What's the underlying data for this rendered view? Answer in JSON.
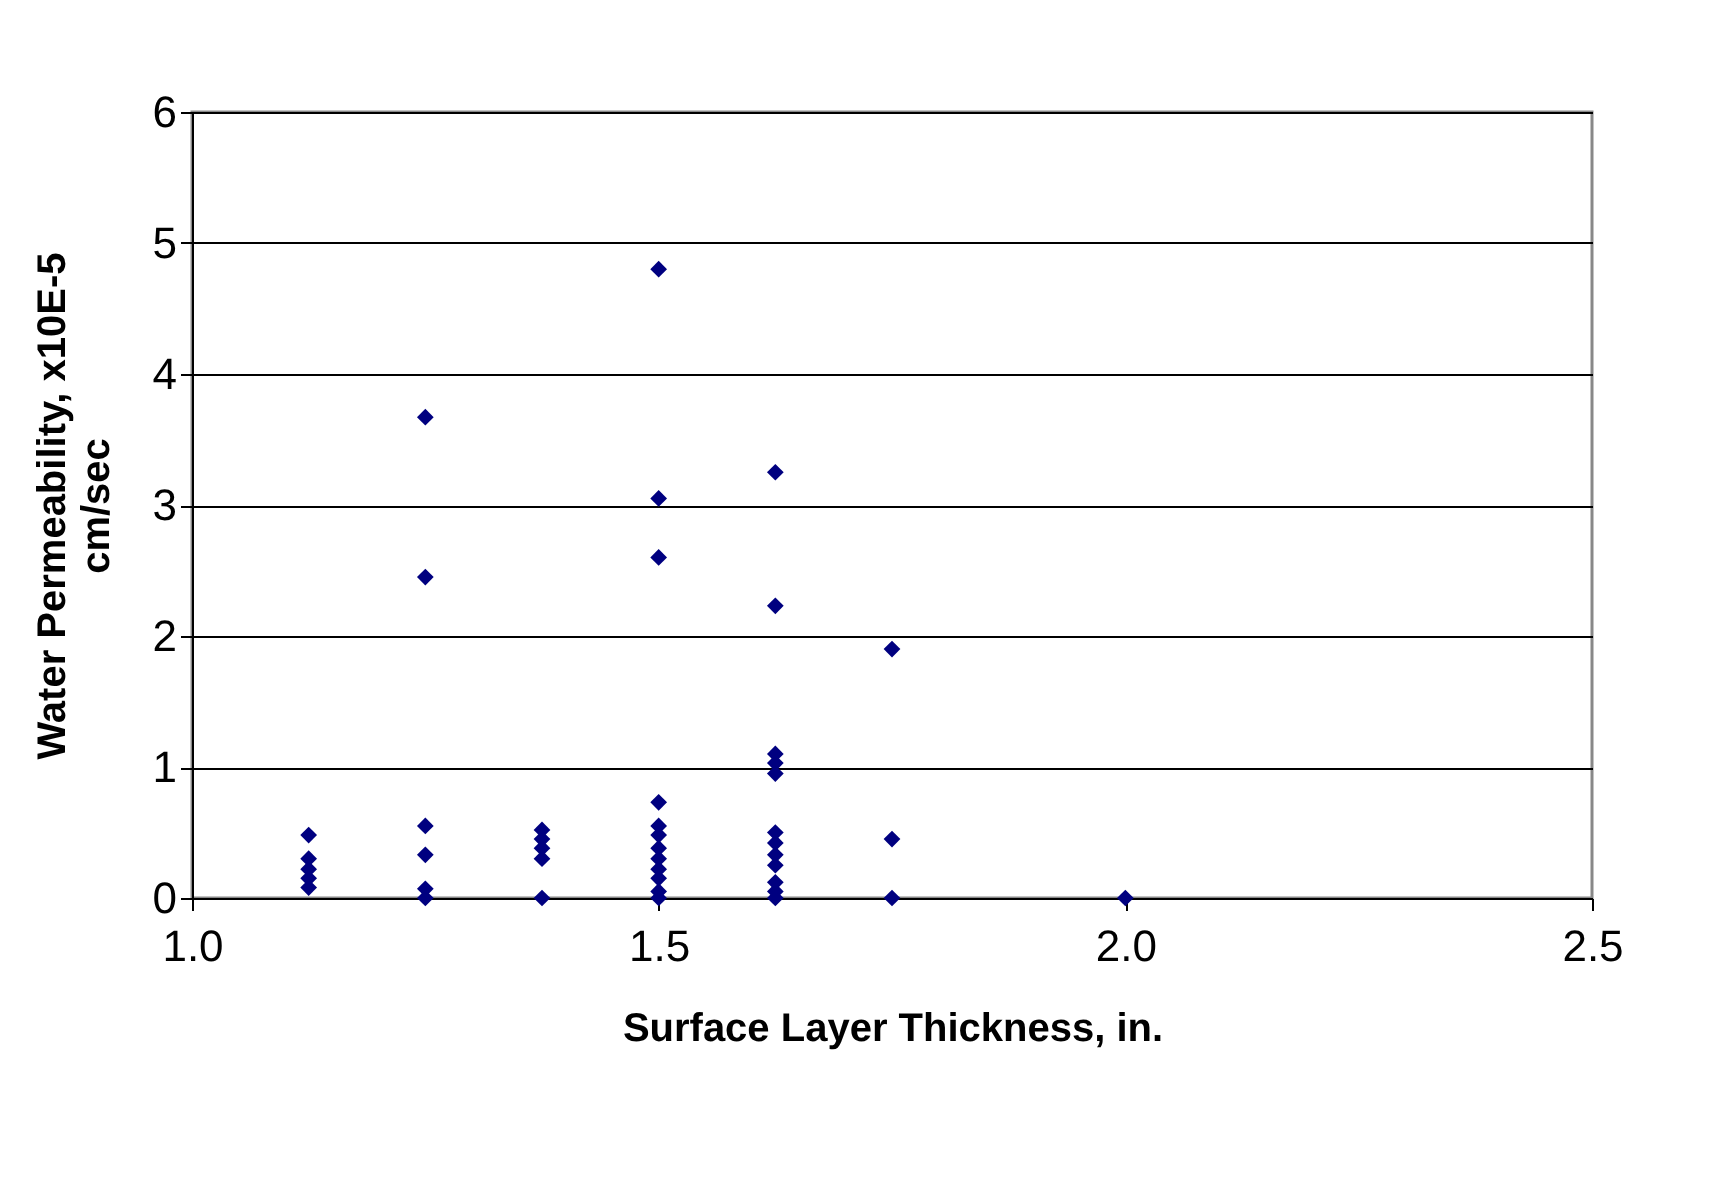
{
  "chart_data": {
    "type": "scatter",
    "xlabel": "Surface Layer Thickness, in.",
    "ylabel": "Water Permeability, x10E-5 cm/sec",
    "x": [
      1.125,
      1.125,
      1.125,
      1.125,
      1.125,
      1.25,
      1.25,
      1.25,
      1.25,
      1.25,
      1.25,
      1.375,
      1.375,
      1.375,
      1.375,
      1.375,
      1.5,
      1.5,
      1.5,
      1.5,
      1.5,
      1.5,
      1.5,
      1.5,
      1.5,
      1.5,
      1.5,
      1.5,
      1.625,
      1.625,
      1.625,
      1.625,
      1.625,
      1.625,
      1.625,
      1.625,
      1.625,
      1.625,
      1.625,
      1.625,
      1.75,
      1.75,
      1.75,
      2.0
    ],
    "series": [
      {
        "color": "#000080",
        "values": [
          0.48,
          0.3,
          0.22,
          0.15,
          0.08,
          3.67,
          2.45,
          0.55,
          0.33,
          0.07,
          0.0,
          0.52,
          0.45,
          0.38,
          0.3,
          0.0,
          4.8,
          3.05,
          2.6,
          0.73,
          0.55,
          0.48,
          0.38,
          0.3,
          0.22,
          0.15,
          0.05,
          0.0,
          3.25,
          2.23,
          1.1,
          1.03,
          0.95,
          0.5,
          0.42,
          0.33,
          0.25,
          0.12,
          0.05,
          0.0,
          1.9,
          0.45,
          0.0,
          0.0
        ]
      }
    ],
    "xlim": [
      1.0,
      2.5
    ],
    "xticks": [
      {
        "value": 1.0,
        "label": "1.0"
      },
      1.5,
      {
        "value": 2.0,
        "label": "2.0"
      },
      2.5
    ],
    "ylim": [
      0,
      6
    ],
    "yticks": [
      0,
      1,
      2,
      3,
      4,
      5,
      6
    ],
    "grid": "y",
    "marker": "diamond",
    "legend": false
  }
}
